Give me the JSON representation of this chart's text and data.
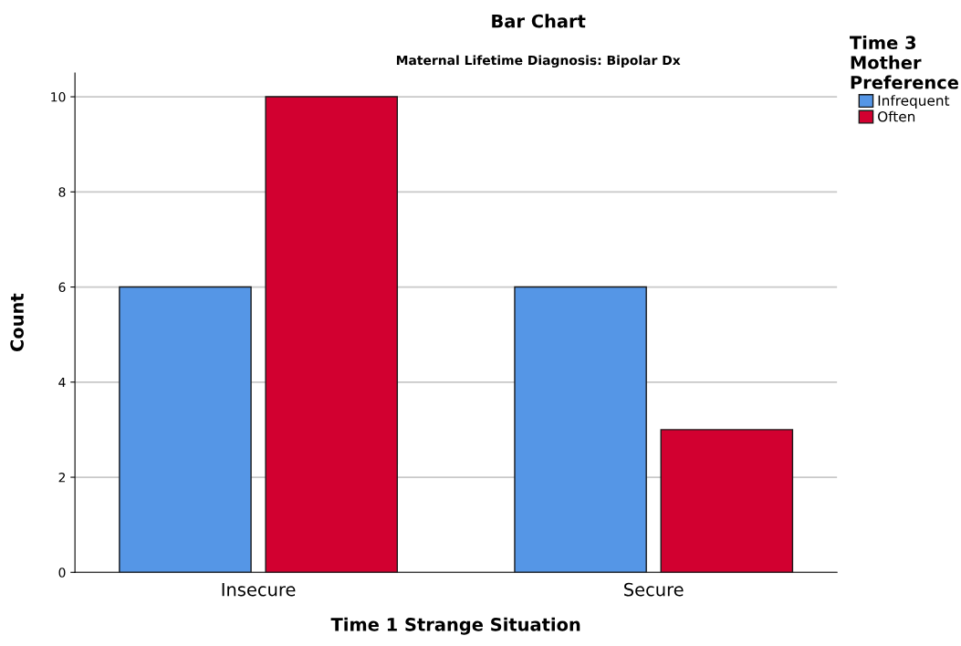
{
  "chart_data": {
    "type": "bar",
    "title": "Bar Chart",
    "subtitle": "Maternal Lifetime Diagnosis: Bipolar Dx",
    "xlabel": "Time 1 Strange Situation",
    "ylabel": "Count",
    "legend_title": "Time 3\nMother\nPreference",
    "categories": [
      "Insecure",
      "Secure"
    ],
    "series": [
      {
        "name": "Infrequent",
        "color": "#5596e6",
        "values": [
          6,
          6
        ]
      },
      {
        "name": "Often",
        "color": "#d20030",
        "values": [
          10,
          3
        ]
      }
    ],
    "ylim": [
      0,
      10.5
    ],
    "yticks": [
      0,
      2,
      4,
      6,
      8,
      10
    ],
    "grid": "y",
    "legend": "top right"
  }
}
